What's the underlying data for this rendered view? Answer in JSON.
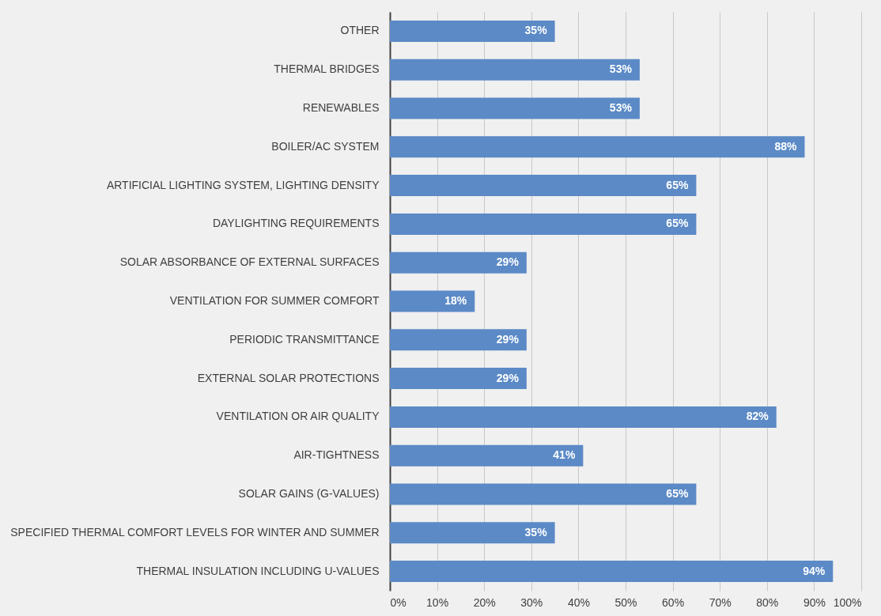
{
  "chart_data": {
    "type": "bar",
    "orientation": "horizontal",
    "categories": [
      "OTHER",
      "THERMAL BRIDGES",
      "RENEWABLES",
      "BOILER/AC SYSTEM",
      "ARTIFICIAL LIGHTING SYSTEM, LIGHTING DENSITY",
      "DAYLIGHTING REQUIREMENTS",
      "SOLAR ABSORBANCE OF EXTERNAL SURFACES",
      "VENTILATION FOR SUMMER COMFORT",
      "PERIODIC TRANSMITTANCE",
      "EXTERNAL SOLAR PROTECTIONS",
      "VENTILATION OR AIR QUALITY",
      "AIR-TIGHTNESS",
      "SOLAR GAINS (G-VALUES)",
      "SPECIFIED THERMAL COMFORT LEVELS FOR WINTER AND SUMMER",
      "THERMAL INSULATION INCLUDING U-VALUES"
    ],
    "values": [
      35,
      53,
      53,
      88,
      65,
      65,
      29,
      18,
      29,
      29,
      82,
      41,
      65,
      35,
      94
    ],
    "value_labels": [
      "35%",
      "53%",
      "53%",
      "88%",
      "65%",
      "65%",
      "29%",
      "18%",
      "29%",
      "29%",
      "82%",
      "41%",
      "65%",
      "35%",
      "94%"
    ],
    "color": "#5b8ac6",
    "xlim": [
      0,
      100
    ],
    "xticks": [
      {
        "value": 0,
        "label": "0%"
      },
      {
        "value": 10,
        "label": "10%"
      },
      {
        "value": 20,
        "label": "20%"
      },
      {
        "value": 30,
        "label": "30%"
      },
      {
        "value": 40,
        "label": "40%"
      },
      {
        "value": 50,
        "label": "50%"
      },
      {
        "value": 60,
        "label": "60%"
      },
      {
        "value": 70,
        "label": "70%"
      },
      {
        "value": 80,
        "label": "80%"
      },
      {
        "value": 90,
        "label": "90%"
      },
      {
        "value": 100,
        "label": "100%"
      }
    ],
    "grid": "x"
  }
}
